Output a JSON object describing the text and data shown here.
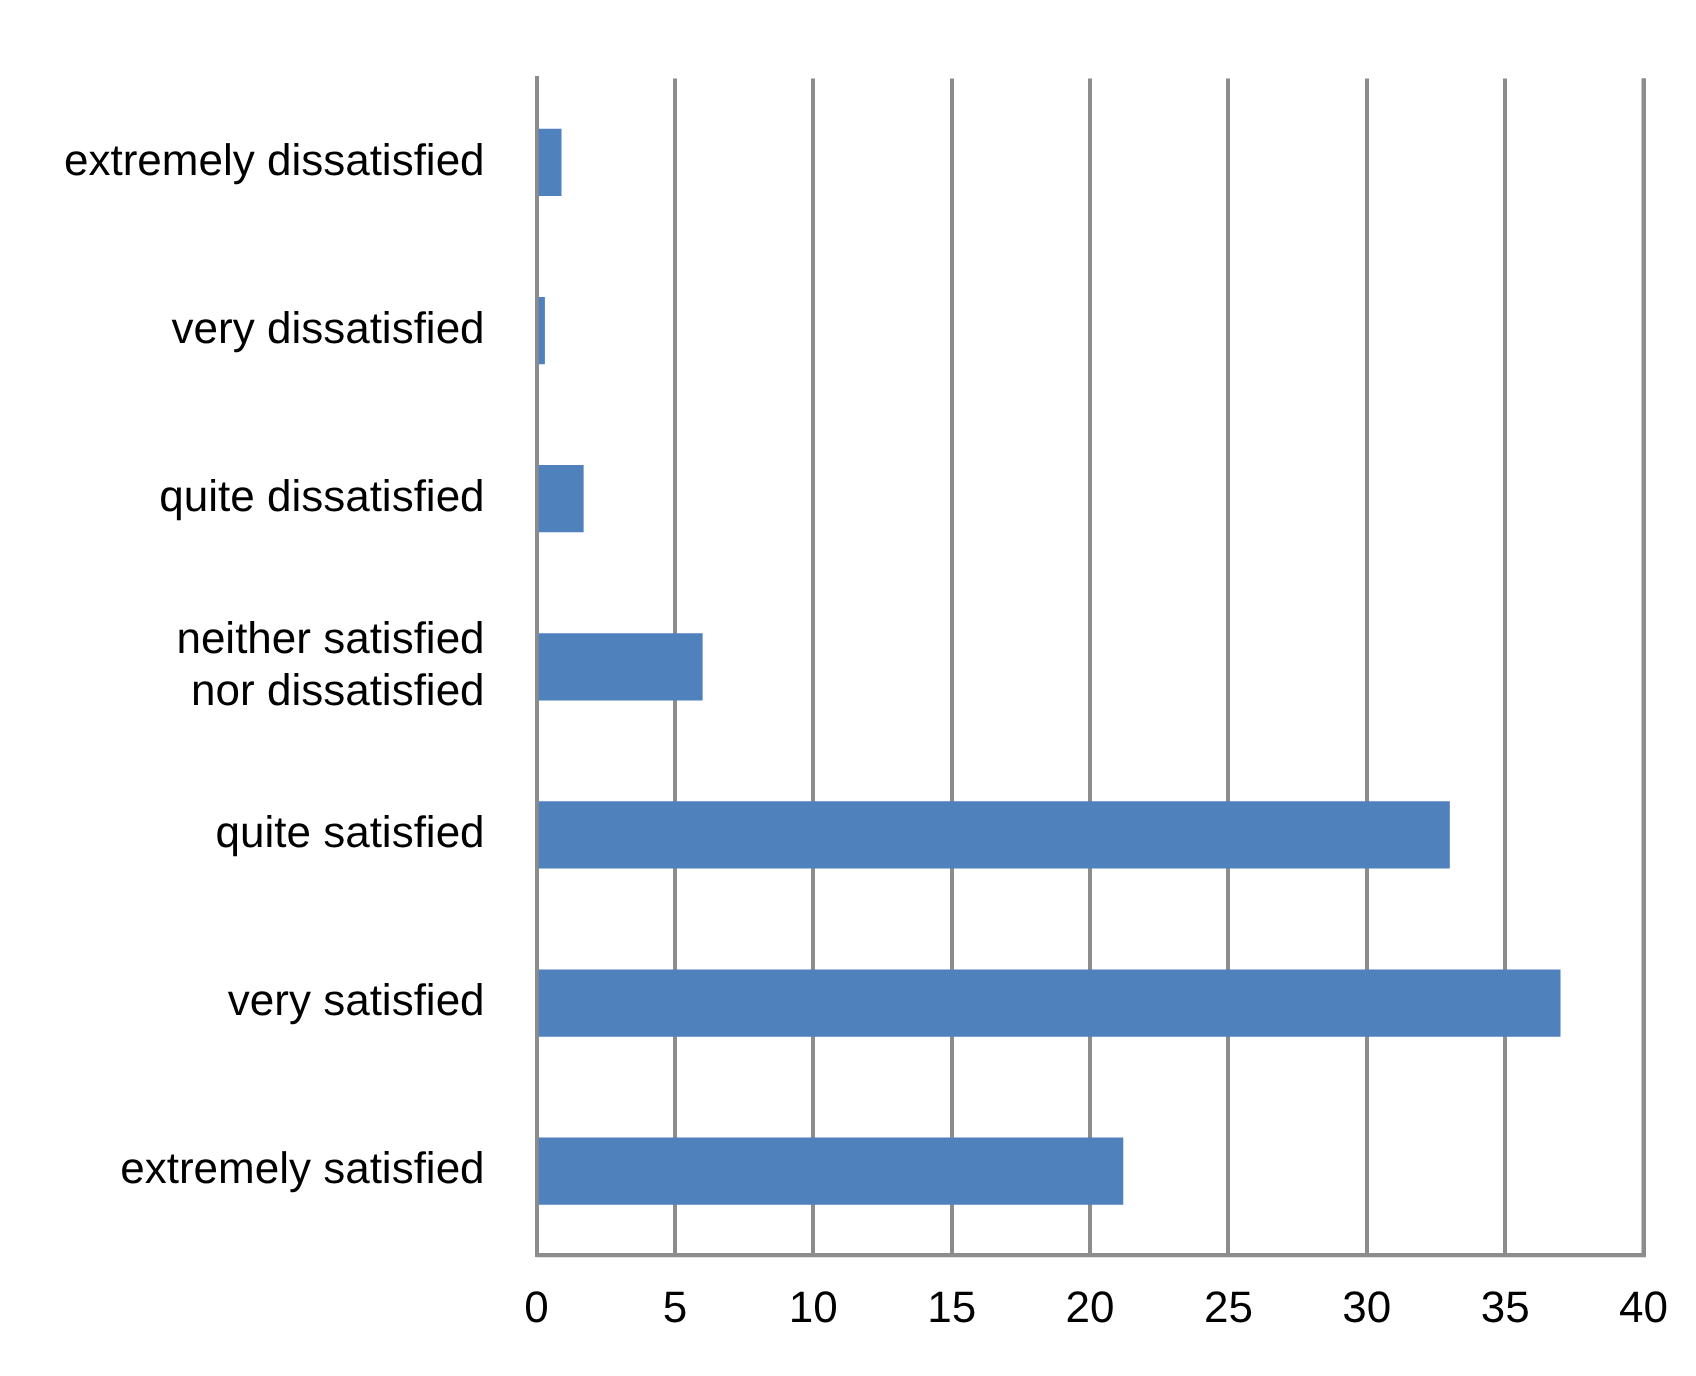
{
  "chart_data": {
    "type": "bar",
    "orientation": "horizontal",
    "categories": [
      "extremely dissatisfied",
      "very dissatisfied",
      "quite dissatisfied",
      "neither satisfied nor dissatisfied",
      "quite satisfied",
      "very satisfied",
      "extremely satisfied"
    ],
    "values": [
      0.9,
      0.3,
      1.7,
      6.0,
      33.0,
      37.0,
      21.2
    ],
    "color": "#4f81bd",
    "xlim": [
      0,
      40
    ],
    "xticks": [
      0,
      5,
      10,
      15,
      20,
      25,
      30,
      35,
      40
    ],
    "grid": "x",
    "legend": false
  }
}
